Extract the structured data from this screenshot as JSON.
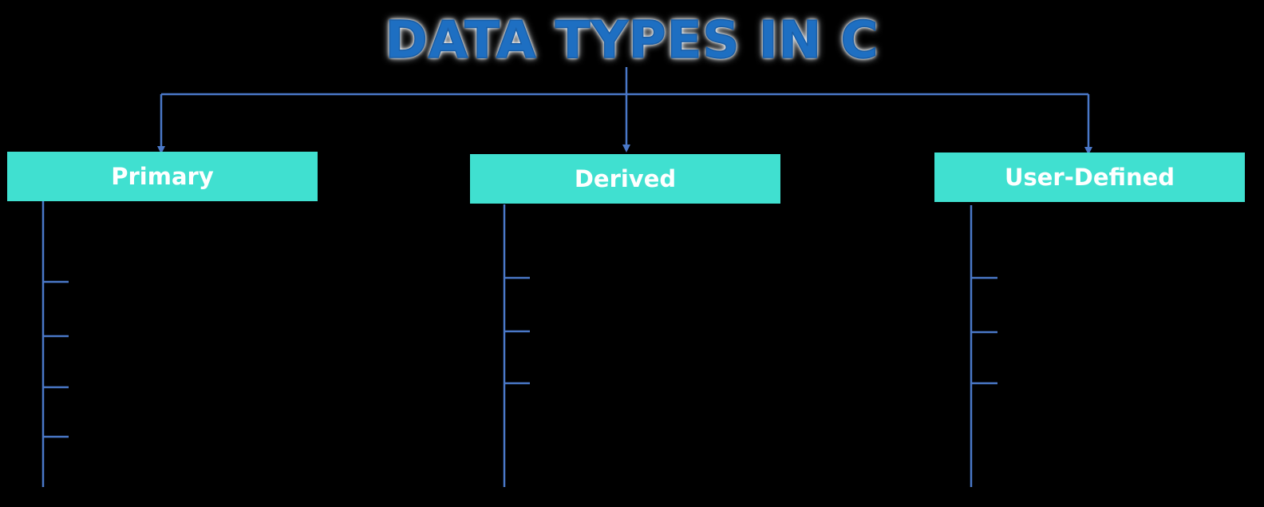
{
  "title": "DATA TYPES IN C",
  "colors": {
    "background": "#000000",
    "box_fill": "#40e0d0",
    "box_text": "#ffffff",
    "connector": "#4a78c8",
    "title_text": "#1e6fc2"
  },
  "categories": [
    {
      "label": "Primary"
    },
    {
      "label": "Derived"
    },
    {
      "label": "User-Defined"
    }
  ]
}
